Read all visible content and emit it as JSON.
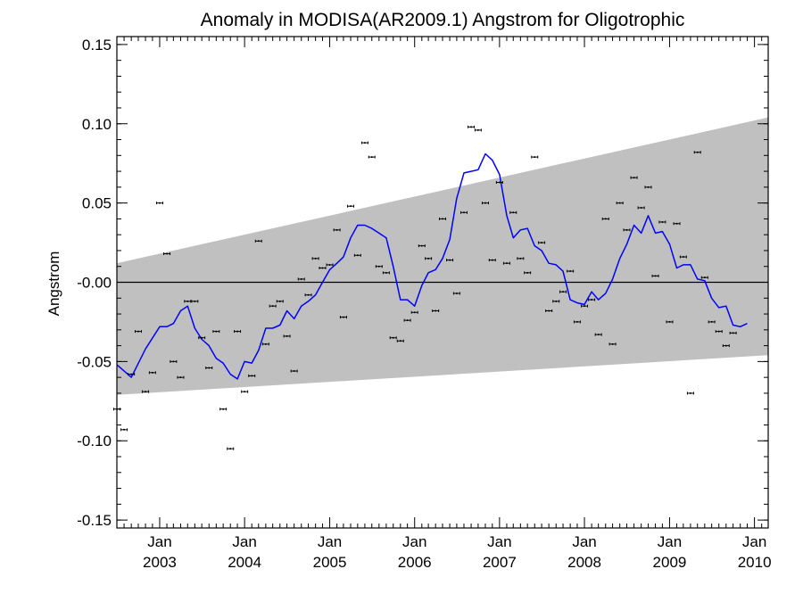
{
  "chart_data": {
    "type": "scatter",
    "title": "Anomaly in MODISA(AR2009.1) Angstrom for Oligotrophic",
    "xlabel": "",
    "ylabel": "Angstrom",
    "xlim": [
      "2002-07-01",
      "2010-03-01"
    ],
    "ylim": [
      -0.155,
      0.155
    ],
    "y_ticks": [
      0.15,
      0.1,
      0.05,
      -0.0,
      -0.05,
      -0.1,
      -0.15
    ],
    "y_tick_labels": [
      "0.15",
      "0.10",
      "0.05",
      "-0.00",
      "-0.05",
      "-0.10",
      "-0.15"
    ],
    "x_ticks": [
      {
        "date": "2003-01-01",
        "label": "Jan",
        "year": "2003"
      },
      {
        "date": "2004-01-01",
        "label": "Jan",
        "year": "2004"
      },
      {
        "date": "2005-01-01",
        "label": "Jan",
        "year": "2005"
      },
      {
        "date": "2006-01-01",
        "label": "Jan",
        "year": "2006"
      },
      {
        "date": "2007-01-01",
        "label": "Jan",
        "year": "2007"
      },
      {
        "date": "2008-01-01",
        "label": "Jan",
        "year": "2008"
      },
      {
        "date": "2009-01-01",
        "label": "Jan",
        "year": "2009"
      },
      {
        "date": "2010-01-01",
        "label": "Jan",
        "year": "2010"
      }
    ],
    "zero_line": 0.0,
    "band": {
      "color": "#c0c0c0",
      "upper": [
        [
          "2002-07-01",
          0.012
        ],
        [
          "2010-03-01",
          0.104
        ]
      ],
      "lower": [
        [
          "2002-07-01",
          -0.071
        ],
        [
          "2010-03-01",
          -0.046
        ]
      ]
    },
    "series": [
      {
        "style": "points_with_errorbars",
        "color": "#000000",
        "points": [
          [
            "2002-07-01",
            -0.08
          ],
          [
            "2002-08-01",
            -0.093
          ],
          [
            "2002-09-01",
            -0.058
          ],
          [
            "2002-10-01",
            -0.031
          ],
          [
            "2002-11-01",
            -0.069
          ],
          [
            "2002-12-01",
            -0.057
          ],
          [
            "2003-01-01",
            0.05
          ],
          [
            "2003-02-01",
            0.018
          ],
          [
            "2003-03-01",
            -0.05
          ],
          [
            "2003-04-01",
            -0.06
          ],
          [
            "2003-05-01",
            -0.012
          ],
          [
            "2003-06-01",
            -0.012
          ],
          [
            "2003-07-01",
            -0.035
          ],
          [
            "2003-08-01",
            -0.054
          ],
          [
            "2003-09-01",
            -0.031
          ],
          [
            "2003-10-01",
            -0.08
          ],
          [
            "2003-11-01",
            -0.105
          ],
          [
            "2003-12-01",
            -0.031
          ],
          [
            "2004-01-01",
            -0.069
          ],
          [
            "2004-02-01",
            -0.059
          ],
          [
            "2004-03-01",
            0.026
          ],
          [
            "2004-04-01",
            -0.039
          ],
          [
            "2004-05-01",
            -0.015
          ],
          [
            "2004-06-01",
            -0.012
          ],
          [
            "2004-07-01",
            -0.034
          ],
          [
            "2004-08-01",
            -0.056
          ],
          [
            "2004-09-01",
            0.002
          ],
          [
            "2004-10-01",
            -0.008
          ],
          [
            "2004-11-01",
            0.015
          ],
          [
            "2004-12-01",
            0.009
          ],
          [
            "2005-01-01",
            0.011
          ],
          [
            "2005-02-01",
            0.033
          ],
          [
            "2005-03-01",
            -0.022
          ],
          [
            "2005-04-01",
            0.048
          ],
          [
            "2005-05-01",
            0.017
          ],
          [
            "2005-06-01",
            0.088
          ],
          [
            "2005-07-01",
            0.079
          ],
          [
            "2005-08-01",
            0.01
          ],
          [
            "2005-09-01",
            0.006
          ],
          [
            "2005-10-01",
            -0.035
          ],
          [
            "2005-11-01",
            -0.037
          ],
          [
            "2005-12-01",
            -0.024
          ],
          [
            "2006-01-01",
            -0.019
          ],
          [
            "2006-02-01",
            0.023
          ],
          [
            "2006-03-01",
            0.015
          ],
          [
            "2006-04-01",
            -0.018
          ],
          [
            "2006-05-01",
            0.04
          ],
          [
            "2006-06-01",
            0.014
          ],
          [
            "2006-07-01",
            -0.007
          ],
          [
            "2006-08-01",
            0.044
          ],
          [
            "2006-09-01",
            0.098
          ],
          [
            "2006-10-01",
            0.096
          ],
          [
            "2006-11-01",
            0.05
          ],
          [
            "2006-12-01",
            0.014
          ],
          [
            "2007-01-01",
            0.063
          ],
          [
            "2007-02-01",
            0.012
          ],
          [
            "2007-03-01",
            0.044
          ],
          [
            "2007-04-01",
            0.015
          ],
          [
            "2007-05-01",
            0.006
          ],
          [
            "2007-06-01",
            0.079
          ],
          [
            "2007-07-01",
            0.025
          ],
          [
            "2007-08-01",
            -0.018
          ],
          [
            "2007-09-01",
            -0.012
          ],
          [
            "2007-10-01",
            -0.006
          ],
          [
            "2007-11-01",
            0.007
          ],
          [
            "2007-12-01",
            -0.025
          ],
          [
            "2008-01-01",
            -0.015
          ],
          [
            "2008-02-01",
            -0.011
          ],
          [
            "2008-03-01",
            -0.033
          ],
          [
            "2008-04-01",
            0.04
          ],
          [
            "2008-05-01",
            -0.039
          ],
          [
            "2008-06-01",
            0.05
          ],
          [
            "2008-07-01",
            0.033
          ],
          [
            "2008-08-01",
            0.066
          ],
          [
            "2008-09-01",
            0.047
          ],
          [
            "2008-10-01",
            0.06
          ],
          [
            "2008-11-01",
            0.004
          ],
          [
            "2008-12-01",
            0.038
          ],
          [
            "2009-01-01",
            -0.025
          ],
          [
            "2009-02-01",
            0.037
          ],
          [
            "2009-03-01",
            0.016
          ],
          [
            "2009-04-01",
            -0.07
          ],
          [
            "2009-05-01",
            0.082
          ],
          [
            "2009-06-01",
            0.003
          ],
          [
            "2009-07-01",
            -0.025
          ],
          [
            "2009-08-01",
            -0.031
          ],
          [
            "2009-09-01",
            -0.04
          ],
          [
            "2009-10-01",
            -0.032
          ]
        ]
      },
      {
        "style": "line",
        "color": "#0000ff",
        "points": [
          [
            "2002-07-01",
            -0.052
          ],
          [
            "2002-09-01",
            -0.06
          ],
          [
            "2002-11-01",
            -0.042
          ],
          [
            "2003-01-01",
            -0.028
          ],
          [
            "2003-02-01",
            -0.028
          ],
          [
            "2003-03-01",
            -0.026
          ],
          [
            "2003-04-01",
            -0.018
          ],
          [
            "2003-05-01",
            -0.015
          ],
          [
            "2003-06-01",
            -0.029
          ],
          [
            "2003-07-01",
            -0.036
          ],
          [
            "2003-08-01",
            -0.04
          ],
          [
            "2003-09-01",
            -0.048
          ],
          [
            "2003-10-01",
            -0.051
          ],
          [
            "2003-11-01",
            -0.058
          ],
          [
            "2003-12-01",
            -0.061
          ],
          [
            "2004-01-01",
            -0.05
          ],
          [
            "2004-02-01",
            -0.051
          ],
          [
            "2004-03-01",
            -0.043
          ],
          [
            "2004-04-01",
            -0.029
          ],
          [
            "2004-05-01",
            -0.029
          ],
          [
            "2004-06-01",
            -0.027
          ],
          [
            "2004-07-01",
            -0.018
          ],
          [
            "2004-08-01",
            -0.023
          ],
          [
            "2004-09-01",
            -0.015
          ],
          [
            "2004-10-01",
            -0.012
          ],
          [
            "2004-11-01",
            -0.008
          ],
          [
            "2004-12-01",
            0.0
          ],
          [
            "2005-01-01",
            0.008
          ],
          [
            "2005-02-01",
            0.012
          ],
          [
            "2005-03-01",
            0.016
          ],
          [
            "2005-04-01",
            0.028
          ],
          [
            "2005-05-01",
            0.036
          ],
          [
            "2005-06-01",
            0.036
          ],
          [
            "2005-07-01",
            0.034
          ],
          [
            "2005-08-01",
            0.031
          ],
          [
            "2005-09-01",
            0.028
          ],
          [
            "2005-10-01",
            0.01
          ],
          [
            "2005-11-01",
            -0.011
          ],
          [
            "2005-12-01",
            -0.011
          ],
          [
            "2006-01-01",
            -0.015
          ],
          [
            "2006-02-01",
            -0.002
          ],
          [
            "2006-03-01",
            0.006
          ],
          [
            "2006-04-01",
            0.008
          ],
          [
            "2006-05-01",
            0.015
          ],
          [
            "2006-06-01",
            0.027
          ],
          [
            "2006-07-01",
            0.053
          ],
          [
            "2006-08-01",
            0.069
          ],
          [
            "2006-09-01",
            0.07
          ],
          [
            "2006-10-01",
            0.071
          ],
          [
            "2006-11-01",
            0.081
          ],
          [
            "2006-12-01",
            0.077
          ],
          [
            "2007-01-01",
            0.068
          ],
          [
            "2007-02-01",
            0.042
          ],
          [
            "2007-03-01",
            0.028
          ],
          [
            "2007-04-01",
            0.033
          ],
          [
            "2007-05-01",
            0.034
          ],
          [
            "2007-06-01",
            0.023
          ],
          [
            "2007-07-01",
            0.02
          ],
          [
            "2007-08-01",
            0.012
          ],
          [
            "2007-09-01",
            0.011
          ],
          [
            "2007-10-01",
            0.007
          ],
          [
            "2007-11-01",
            -0.011
          ],
          [
            "2007-12-01",
            -0.013
          ],
          [
            "2008-01-01",
            -0.014
          ],
          [
            "2008-02-01",
            -0.006
          ],
          [
            "2008-03-01",
            -0.011
          ],
          [
            "2008-04-01",
            -0.007
          ],
          [
            "2008-05-01",
            0.002
          ],
          [
            "2008-06-01",
            0.015
          ],
          [
            "2008-07-01",
            0.024
          ],
          [
            "2008-08-01",
            0.036
          ],
          [
            "2008-09-01",
            0.031
          ],
          [
            "2008-10-01",
            0.042
          ],
          [
            "2008-11-01",
            0.031
          ],
          [
            "2008-12-01",
            0.032
          ],
          [
            "2009-01-01",
            0.024
          ],
          [
            "2009-02-01",
            0.009
          ],
          [
            "2009-03-01",
            0.011
          ],
          [
            "2009-04-01",
            0.011
          ],
          [
            "2009-05-01",
            0.002
          ],
          [
            "2009-06-01",
            0.001
          ],
          [
            "2009-07-01",
            -0.01
          ],
          [
            "2009-08-01",
            -0.016
          ],
          [
            "2009-09-01",
            -0.015
          ],
          [
            "2009-10-01",
            -0.027
          ],
          [
            "2009-11-01",
            -0.028
          ],
          [
            "2009-12-01",
            -0.026
          ]
        ]
      }
    ],
    "grid": false,
    "legend": "none"
  }
}
